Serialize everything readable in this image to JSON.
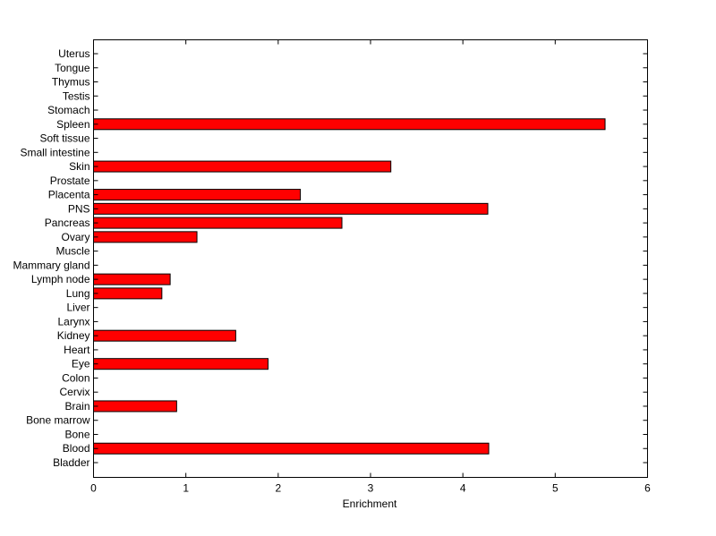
{
  "chart_data": {
    "type": "bar",
    "orientation": "horizontal",
    "title": "",
    "xlabel": "Enrichment",
    "ylabel": "",
    "xlim": [
      0,
      6
    ],
    "xticks": [
      "0",
      "1",
      "2",
      "3",
      "4",
      "5",
      "6"
    ],
    "grid": false,
    "bar_color": "#ff0000",
    "categories": [
      "Bladder",
      "Blood",
      "Bone",
      "Bone marrow",
      "Brain",
      "Cervix",
      "Colon",
      "Eye",
      "Heart",
      "Kidney",
      "Larynx",
      "Liver",
      "Lung",
      "Lymph node",
      "Mammary gland",
      "Muscle",
      "Ovary",
      "Pancreas",
      "PNS",
      "Placenta",
      "Prostate",
      "Skin",
      "Small intestine",
      "Soft tissue",
      "Spleen",
      "Stomach",
      "Testis",
      "Thymus",
      "Tongue",
      "Uterus"
    ],
    "values": [
      0,
      4.28,
      0,
      0,
      0.9,
      0,
      0,
      1.89,
      0,
      1.54,
      0,
      0,
      0.74,
      0.83,
      0,
      0,
      1.12,
      2.69,
      4.27,
      2.24,
      0,
      3.22,
      0,
      0,
      5.54,
      0,
      0,
      0,
      0,
      0
    ]
  }
}
